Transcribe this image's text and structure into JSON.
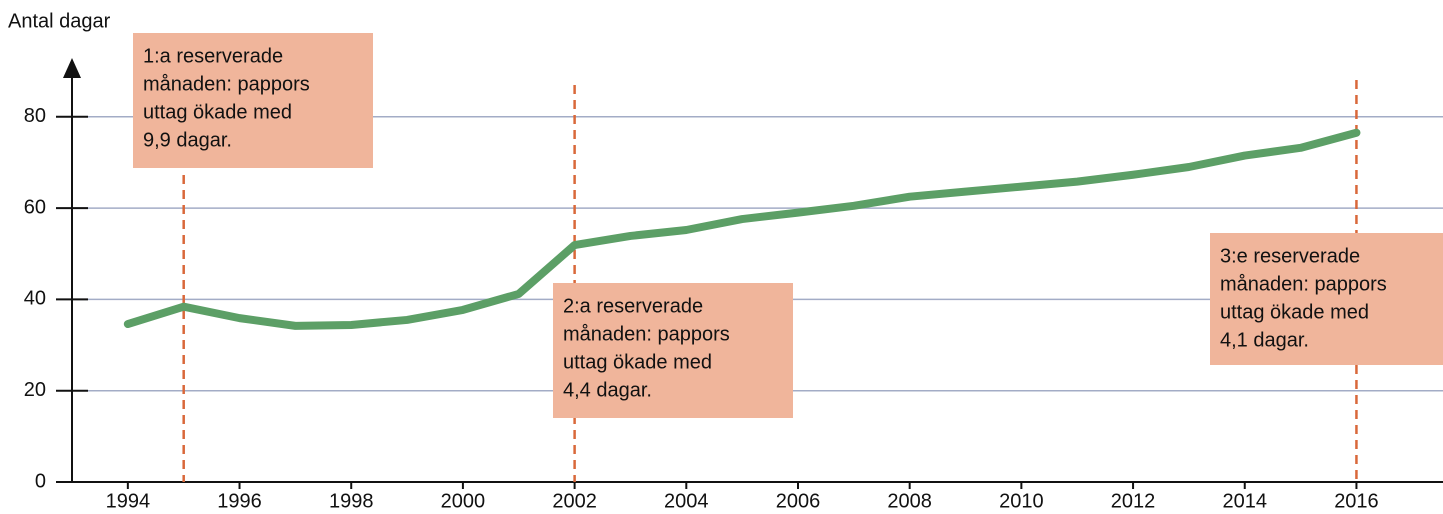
{
  "chart_data": {
    "type": "line",
    "y_label": "Antal dagar",
    "x": [
      1994,
      1995,
      1996,
      1997,
      1998,
      1999,
      2000,
      2001,
      2002,
      2003,
      2004,
      2005,
      2006,
      2007,
      2008,
      2009,
      2010,
      2011,
      2012,
      2013,
      2014,
      2015,
      2016
    ],
    "series": [
      {
        "name": "Pappors uttag",
        "color": "#5c9f66",
        "values": [
          34.6,
          38.4,
          35.9,
          34.2,
          34.4,
          35.5,
          37.7,
          41.2,
          51.9,
          53.9,
          55.2,
          57.6,
          59.0,
          60.5,
          62.5,
          63.6,
          64.7,
          65.8,
          67.3,
          69.0,
          71.5,
          73.2,
          76.5
        ]
      }
    ],
    "xlim": [
      1993,
      2017.55
    ],
    "xticks": [
      1994,
      1996,
      1998,
      2000,
      2002,
      2004,
      2006,
      2008,
      2010,
      2012,
      2014,
      2016
    ],
    "ylim": [
      0,
      92
    ],
    "yticks": [
      0,
      20,
      40,
      60,
      80
    ],
    "grid": true,
    "annotations": [
      {
        "x": 1995,
        "lines": [
          "1:a reserverade",
          "månaden: pappors",
          "uttag ökade med",
          "9,9 dagar."
        ]
      },
      {
        "x": 2002,
        "lines": [
          "2:a reserverade",
          "månaden: pappors",
          "uttag ökade med",
          "4,4 dagar."
        ]
      },
      {
        "x": 2016,
        "lines": [
          "3:e reserverade",
          "månaden: pappors",
          "uttag ökade med",
          "4,1 dagar."
        ]
      }
    ]
  }
}
